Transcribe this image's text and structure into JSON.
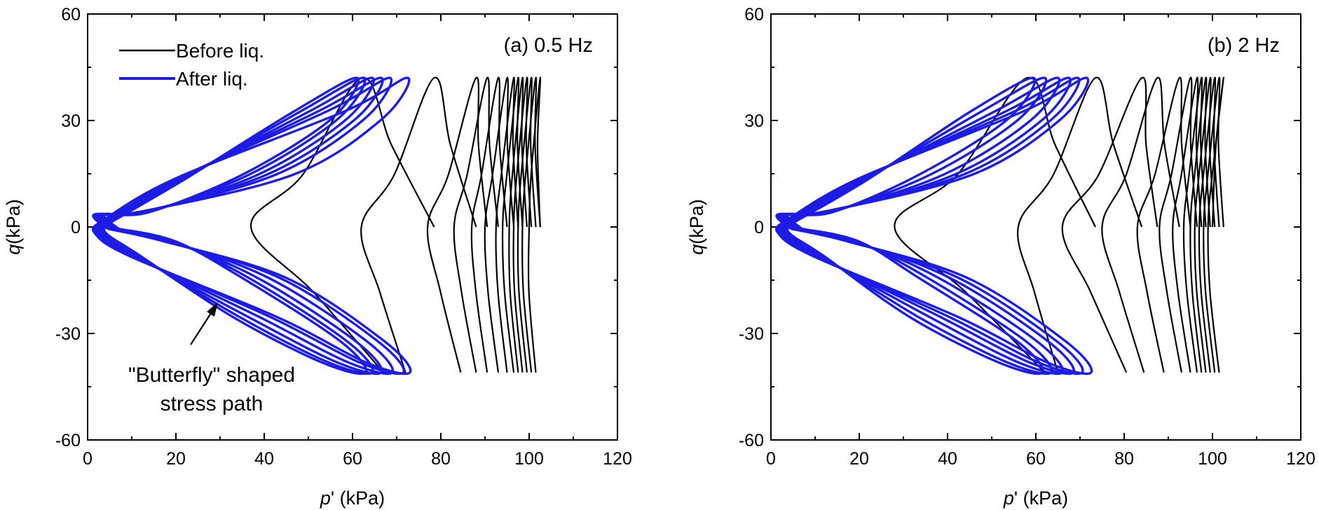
{
  "chart_data": [
    {
      "type": "line",
      "panel_label": "(a) 0.5 Hz",
      "xlabel": "p' (kPa)",
      "ylabel": "q(kPa)",
      "xlim": [
        0,
        120
      ],
      "ylim": [
        -60,
        60
      ],
      "xticks": [
        0,
        20,
        40,
        60,
        80,
        100,
        120
      ],
      "yticks": [
        -60,
        -30,
        0,
        30,
        60
      ],
      "legend": [
        "Before liq.",
        "After liq."
      ],
      "legend_position": "top-left",
      "annotation": [
        "\"Butterfly\" shaped",
        "stress path"
      ],
      "q_amplitude": {
        "max": 42,
        "min": -41
      },
      "series": [
        {
          "name": "Before liq.",
          "color": "#000000",
          "cycles": [
            {
              "p_start": 102.5,
              "p_peak": 102.5,
              "p_trough": 101.5,
              "p_mid": 100.0
            },
            {
              "p_start": 102.5,
              "p_peak": 101.5,
              "p_trough": 100.5,
              "p_mid": 98.5
            },
            {
              "p_start": 101.5,
              "p_peak": 100.5,
              "p_trough": 99.5,
              "p_mid": 97.5
            },
            {
              "p_start": 100.5,
              "p_peak": 99.5,
              "p_trough": 98.5,
              "p_mid": 96.5
            },
            {
              "p_start": 99.5,
              "p_peak": 98.5,
              "p_trough": 97.5,
              "p_mid": 95.5
            },
            {
              "p_start": 98.5,
              "p_peak": 97.5,
              "p_trough": 96.5,
              "p_mid": 94.0
            },
            {
              "p_start": 97.5,
              "p_peak": 96.5,
              "p_trough": 95.0,
              "p_mid": 92.5
            },
            {
              "p_start": 96.5,
              "p_peak": 95.0,
              "p_trough": 93.0,
              "p_mid": 90.0
            },
            {
              "p_start": 95.0,
              "p_peak": 93.0,
              "p_trough": 90.5,
              "p_mid": 87.0
            },
            {
              "p_start": 93.0,
              "p_peak": 90.5,
              "p_trough": 88.0,
              "p_mid": 83.0
            },
            {
              "p_start": 90.5,
              "p_peak": 88.0,
              "p_trough": 84.5,
              "p_mid": 77.0
            },
            {
              "p_start": 88.0,
              "p_peak": 78.5,
              "p_trough": 72.0,
              "p_mid": 62.0
            },
            {
              "p_start": 78.5,
              "p_peak": 62.0,
              "p_trough": 67.0,
              "p_mid": 37.0
            }
          ]
        },
        {
          "name": "After liq.",
          "color": "#1c1ce6",
          "cycles": [
            {
              "p_peak": 72.5,
              "p_trough": 73.0,
              "p_mid": 1.5
            },
            {
              "p_peak": 68.5,
              "p_trough": 71.5,
              "p_mid": 2.0
            },
            {
              "p_peak": 66.5,
              "p_trough": 69.0,
              "p_mid": 2.5
            },
            {
              "p_peak": 64.5,
              "p_trough": 66.5,
              "p_mid": 3.0
            },
            {
              "p_peak": 62.5,
              "p_trough": 64.5,
              "p_mid": 3.5
            },
            {
              "p_peak": 61.0,
              "p_trough": 63.0,
              "p_mid": 4.0
            }
          ]
        }
      ]
    },
    {
      "type": "line",
      "panel_label": "(b) 2 Hz",
      "xlabel": "p' (kPa)",
      "ylabel": "q(kPa)",
      "xlim": [
        0,
        120
      ],
      "ylim": [
        -60,
        60
      ],
      "xticks": [
        0,
        20,
        40,
        60,
        80,
        100,
        120
      ],
      "yticks": [
        -60,
        -30,
        0,
        30,
        60
      ],
      "q_amplitude": {
        "max": 42,
        "min": -41
      },
      "series": [
        {
          "name": "Before liq.",
          "color": "#000000",
          "cycles": [
            {
              "p_start": 100.0,
              "p_peak": 102.5,
              "p_trough": 101.5,
              "p_mid": 99.0
            },
            {
              "p_start": 102.5,
              "p_peak": 101.5,
              "p_trough": 100.5,
              "p_mid": 98.0
            },
            {
              "p_start": 101.5,
              "p_peak": 100.5,
              "p_trough": 99.5,
              "p_mid": 97.0
            },
            {
              "p_start": 100.5,
              "p_peak": 99.5,
              "p_trough": 98.5,
              "p_mid": 96.0
            },
            {
              "p_start": 99.5,
              "p_peak": 98.5,
              "p_trough": 97.5,
              "p_mid": 95.0
            },
            {
              "p_start": 98.5,
              "p_peak": 97.5,
              "p_trough": 96.5,
              "p_mid": 93.5
            },
            {
              "p_start": 97.5,
              "p_peak": 96.5,
              "p_trough": 95.0,
              "p_mid": 91.0
            },
            {
              "p_start": 96.5,
              "p_peak": 95.0,
              "p_trough": 93.0,
              "p_mid": 88.0
            },
            {
              "p_start": 95.0,
              "p_peak": 92.5,
              "p_trough": 89.0,
              "p_mid": 83.0
            },
            {
              "p_start": 92.5,
              "p_peak": 87.5,
              "p_trough": 84.5,
              "p_mid": 75.0
            },
            {
              "p_start": 87.5,
              "p_peak": 84.0,
              "p_trough": 80.5,
              "p_mid": 66.0
            },
            {
              "p_start": 84.0,
              "p_peak": 73.5,
              "p_trough": 65.0,
              "p_mid": 56.0
            },
            {
              "p_start": 73.5,
              "p_peak": 58.0,
              "p_trough": 62.0,
              "p_mid": 28.0
            }
          ]
        },
        {
          "name": "After liq.",
          "color": "#1c1ce6",
          "cycles": [
            {
              "p_peak": 71.5,
              "p_trough": 72.5,
              "p_mid": 1.5
            },
            {
              "p_peak": 69.5,
              "p_trough": 70.5,
              "p_mid": 2.0
            },
            {
              "p_peak": 67.5,
              "p_trough": 68.5,
              "p_mid": 2.5
            },
            {
              "p_peak": 65.0,
              "p_trough": 66.0,
              "p_mid": 3.0
            },
            {
              "p_peak": 62.0,
              "p_trough": 63.5,
              "p_mid": 3.5
            },
            {
              "p_peak": 59.5,
              "p_trough": 61.5,
              "p_mid": 4.0
            }
          ]
        }
      ]
    }
  ]
}
